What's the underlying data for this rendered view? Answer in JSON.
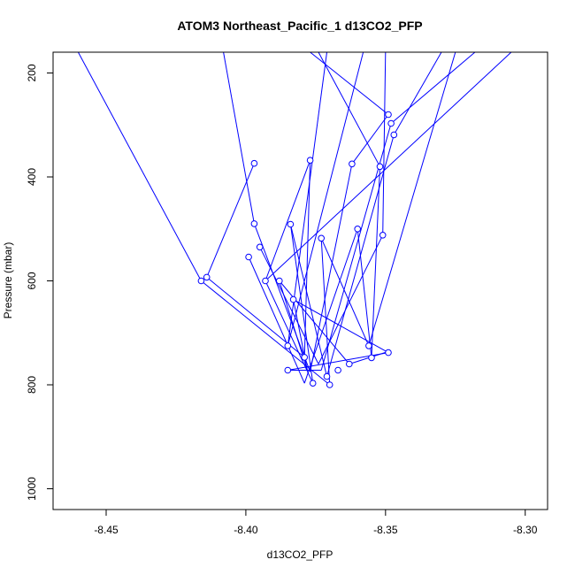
{
  "chart_data": {
    "type": "line",
    "title": "ATOM3 Northeast_Pacific_1 d13CO2_PFP",
    "xlabel": "d13CO2_PFP",
    "ylabel": "Pressure (mbar)",
    "xlim": [
      -8.469,
      -8.292
    ],
    "ylim": [
      1040,
      160
    ],
    "y_inverted": true,
    "x_ticks": [
      -8.45,
      -8.4,
      -8.35,
      -8.3
    ],
    "x_tick_labels": [
      "-8.45",
      "-8.40",
      "-8.35",
      "-8.30"
    ],
    "y_ticks": [
      200,
      400,
      600,
      800,
      1000
    ],
    "y_tick_labels": [
      "200",
      "400",
      "600",
      "800",
      "1000"
    ],
    "grid": false,
    "legend": "none",
    "color": "#0000ff",
    "series": [
      {
        "values": [
          [
            -8.46,
            160
          ],
          [
            -8.416,
            600
          ]
        ]
      },
      {
        "values": [
          [
            -8.416,
            600
          ],
          [
            -8.37,
            800
          ]
        ]
      },
      {
        "values": [
          [
            -8.37,
            800
          ],
          [
            -8.373,
            518
          ]
        ]
      },
      {
        "values": [
          [
            -8.373,
            518
          ],
          [
            -8.356,
            725
          ]
        ]
      },
      {
        "values": [
          [
            -8.356,
            725
          ],
          [
            -8.325,
            160
          ]
        ]
      },
      {
        "values": [
          [
            -8.408,
            160
          ],
          [
            -8.397,
            490
          ]
        ]
      },
      {
        "values": [
          [
            -8.397,
            490
          ],
          [
            -8.377,
            775
          ]
        ]
      },
      {
        "values": [
          [
            -8.377,
            775
          ],
          [
            -8.362,
            375
          ]
        ]
      },
      {
        "values": [
          [
            -8.362,
            375
          ],
          [
            -8.349,
            280
          ]
        ]
      },
      {
        "values": [
          [
            -8.349,
            280
          ],
          [
            -8.377,
            160
          ]
        ]
      },
      {
        "values": [
          [
            -8.397,
            374
          ],
          [
            -8.414,
            593
          ]
        ]
      },
      {
        "values": [
          [
            -8.414,
            593
          ],
          [
            -8.379,
            747
          ]
        ]
      },
      {
        "values": [
          [
            -8.379,
            747
          ],
          [
            -8.377,
            368
          ]
        ]
      },
      {
        "values": [
          [
            -8.377,
            368
          ],
          [
            -8.393,
            600
          ]
        ]
      },
      {
        "values": [
          [
            -8.393,
            600
          ],
          [
            -8.376,
            797
          ]
        ]
      },
      {
        "values": [
          [
            -8.376,
            797
          ],
          [
            -8.384,
            491
          ]
        ]
      },
      {
        "values": [
          [
            -8.384,
            491
          ],
          [
            -8.371,
            784
          ]
        ]
      },
      {
        "values": [
          [
            -8.371,
            784
          ],
          [
            -8.347,
            319
          ]
        ]
      },
      {
        "values": [
          [
            -8.347,
            319
          ],
          [
            -8.33,
            160
          ]
        ]
      },
      {
        "values": [
          [
            -8.371,
            160
          ],
          [
            -8.385,
            725
          ]
        ]
      },
      {
        "values": [
          [
            -8.385,
            725
          ],
          [
            -8.358,
            160
          ]
        ]
      },
      {
        "values": [
          [
            -8.399,
            554
          ],
          [
            -8.379,
            797
          ]
        ]
      },
      {
        "values": [
          [
            -8.379,
            797
          ],
          [
            -8.36,
            500
          ]
        ]
      },
      {
        "values": [
          [
            -8.36,
            500
          ],
          [
            -8.355,
            748
          ]
        ]
      },
      {
        "values": [
          [
            -8.355,
            748
          ],
          [
            -8.352,
            380
          ]
        ]
      },
      {
        "values": [
          [
            -8.352,
            380
          ],
          [
            -8.374,
            160
          ]
        ]
      },
      {
        "values": [
          [
            -8.395,
            535
          ],
          [
            -8.374,
            760
          ]
        ]
      },
      {
        "values": [
          [
            -8.374,
            760
          ],
          [
            -8.351,
            512
          ]
        ]
      },
      {
        "values": [
          [
            -8.351,
            512
          ],
          [
            -8.35,
            160
          ]
        ]
      },
      {
        "values": [
          [
            -8.388,
            600
          ],
          [
            -8.378,
            772
          ]
        ]
      },
      {
        "values": [
          [
            -8.378,
            772
          ],
          [
            -8.383,
            636
          ]
        ]
      },
      {
        "values": [
          [
            -8.383,
            636
          ],
          [
            -8.349,
            738
          ]
        ]
      },
      {
        "values": [
          [
            -8.349,
            738
          ],
          [
            -8.385,
            772
          ]
        ]
      },
      {
        "values": [
          [
            -8.385,
            772
          ],
          [
            -8.373,
            772
          ]
        ]
      },
      {
        "values": [
          [
            -8.373,
            772
          ],
          [
            -8.348,
            297
          ]
        ]
      },
      {
        "values": [
          [
            -8.348,
            297
          ],
          [
            -8.318,
            160
          ]
        ]
      },
      {
        "values": [
          [
            -8.388,
            600
          ],
          [
            -8.363,
            760
          ]
        ]
      },
      {
        "values": [
          [
            -8.363,
            760
          ],
          [
            -8.349,
            736
          ]
        ]
      },
      {
        "values": [
          [
            -8.393,
            600
          ],
          [
            -8.305,
            160
          ]
        ]
      }
    ],
    "points": [
      [
        -8.349,
        280
      ],
      [
        -8.348,
        297
      ],
      [
        -8.347,
        319
      ],
      [
        -8.397,
        374
      ],
      [
        -8.362,
        375
      ],
      [
        -8.377,
        368
      ],
      [
        -8.352,
        380
      ],
      [
        -8.397,
        490
      ],
      [
        -8.384,
        491
      ],
      [
        -8.36,
        500
      ],
      [
        -8.351,
        512
      ],
      [
        -8.373,
        518
      ],
      [
        -8.395,
        535
      ],
      [
        -8.399,
        554
      ],
      [
        -8.414,
        593
      ],
      [
        -8.416,
        600
      ],
      [
        -8.393,
        600
      ],
      [
        -8.388,
        600
      ],
      [
        -8.383,
        636
      ],
      [
        -8.356,
        725
      ],
      [
        -8.385,
        725
      ],
      [
        -8.349,
        738
      ],
      [
        -8.355,
        748
      ],
      [
        -8.379,
        747
      ],
      [
        -8.363,
        760
      ],
      [
        -8.385,
        772
      ],
      [
        -8.367,
        772
      ],
      [
        -8.371,
        784
      ],
      [
        -8.376,
        797
      ],
      [
        -8.37,
        800
      ]
    ]
  }
}
